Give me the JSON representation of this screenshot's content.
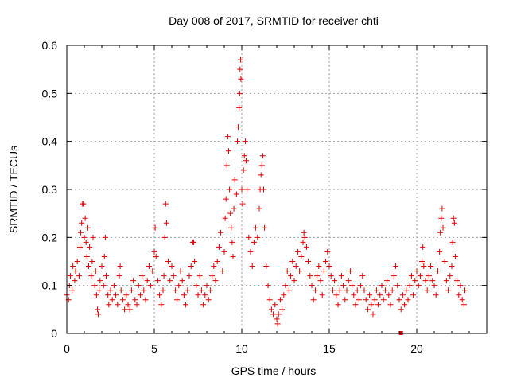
{
  "chart_data": {
    "type": "scatter",
    "title": "Day 008 of 2017, SRMTID for receiver chti",
    "xlabel": "GPS time / hours",
    "ylabel": "SRMTID / TECUs",
    "xlim": [
      0,
      24
    ],
    "ylim": [
      0,
      0.6
    ],
    "xticks": [
      0,
      5,
      10,
      15,
      20
    ],
    "xtick_labels": [
      "0",
      "5",
      "10",
      "15",
      "20"
    ],
    "yticks": [
      0,
      0.1,
      0.2,
      0.3,
      0.4,
      0.5,
      0.6
    ],
    "ytick_labels": [
      "0",
      "0.1",
      "0.2",
      "0.3",
      "0.4",
      "0.5",
      "0.6"
    ],
    "grid": true,
    "marker": "+",
    "color": "#e00000",
    "series": [
      {
        "name": "SRMTID",
        "points": [
          [
            0.0,
            0.08
          ],
          [
            0.1,
            0.07
          ],
          [
            0.15,
            0.1
          ],
          [
            0.2,
            0.12
          ],
          [
            0.3,
            0.09
          ],
          [
            0.35,
            0.14
          ],
          [
            0.45,
            0.11
          ],
          [
            0.5,
            0.13
          ],
          [
            0.6,
            0.15
          ],
          [
            0.7,
            0.12
          ],
          [
            0.75,
            0.18
          ],
          [
            0.8,
            0.21
          ],
          [
            0.85,
            0.23
          ],
          [
            0.9,
            0.27
          ],
          [
            0.95,
            0.27
          ],
          [
            1.0,
            0.2
          ],
          [
            1.05,
            0.24
          ],
          [
            1.1,
            0.19
          ],
          [
            1.15,
            0.16
          ],
          [
            1.2,
            0.22
          ],
          [
            1.25,
            0.14
          ],
          [
            1.3,
            0.18
          ],
          [
            1.4,
            0.12
          ],
          [
            1.45,
            0.15
          ],
          [
            1.5,
            0.2
          ],
          [
            1.6,
            0.1
          ],
          [
            1.65,
            0.13
          ],
          [
            1.7,
            0.08
          ],
          [
            1.75,
            0.05
          ],
          [
            1.8,
            0.04
          ],
          [
            1.85,
            0.09
          ],
          [
            1.9,
            0.11
          ],
          [
            2.0,
            0.14
          ],
          [
            2.1,
            0.1
          ],
          [
            2.15,
            0.16
          ],
          [
            2.2,
            0.2
          ],
          [
            2.25,
            0.12
          ],
          [
            2.35,
            0.08
          ],
          [
            2.4,
            0.06
          ],
          [
            2.5,
            0.09
          ],
          [
            2.6,
            0.07
          ],
          [
            2.7,
            0.1
          ],
          [
            2.8,
            0.08
          ],
          [
            2.9,
            0.06
          ],
          [
            3.0,
            0.12
          ],
          [
            3.05,
            0.14
          ],
          [
            3.1,
            0.09
          ],
          [
            3.2,
            0.07
          ],
          [
            3.3,
            0.05
          ],
          [
            3.4,
            0.08
          ],
          [
            3.5,
            0.06
          ],
          [
            3.6,
            0.05
          ],
          [
            3.7,
            0.09
          ],
          [
            3.8,
            0.11
          ],
          [
            3.9,
            0.07
          ],
          [
            4.0,
            0.06
          ],
          [
            4.1,
            0.1
          ],
          [
            4.2,
            0.08
          ],
          [
            4.3,
            0.12
          ],
          [
            4.4,
            0.09
          ],
          [
            4.5,
            0.07
          ],
          [
            4.6,
            0.11
          ],
          [
            4.7,
            0.14
          ],
          [
            4.8,
            0.1
          ],
          [
            4.9,
            0.13
          ],
          [
            5.0,
            0.17
          ],
          [
            5.05,
            0.22
          ],
          [
            5.1,
            0.16
          ],
          [
            5.2,
            0.11
          ],
          [
            5.3,
            0.08
          ],
          [
            5.4,
            0.06
          ],
          [
            5.5,
            0.09
          ],
          [
            5.55,
            0.12
          ],
          [
            5.6,
            0.2
          ],
          [
            5.65,
            0.27
          ],
          [
            5.7,
            0.23
          ],
          [
            5.8,
            0.15
          ],
          [
            5.9,
            0.11
          ],
          [
            6.0,
            0.14
          ],
          [
            6.1,
            0.12
          ],
          [
            6.2,
            0.09
          ],
          [
            6.3,
            0.07
          ],
          [
            6.4,
            0.1
          ],
          [
            6.5,
            0.13
          ],
          [
            6.6,
            0.11
          ],
          [
            6.7,
            0.08
          ],
          [
            6.8,
            0.06
          ],
          [
            6.9,
            0.09
          ],
          [
            7.0,
            0.12
          ],
          [
            7.1,
            0.14
          ],
          [
            7.2,
            0.19
          ],
          [
            7.25,
            0.19
          ],
          [
            7.3,
            0.15
          ],
          [
            7.4,
            0.1
          ],
          [
            7.5,
            0.08
          ],
          [
            7.6,
            0.12
          ],
          [
            7.7,
            0.09
          ],
          [
            7.8,
            0.06
          ],
          [
            7.9,
            0.08
          ],
          [
            8.0,
            0.1
          ],
          [
            8.1,
            0.07
          ],
          [
            8.2,
            0.09
          ],
          [
            8.3,
            0.12
          ],
          [
            8.4,
            0.14
          ],
          [
            8.5,
            0.11
          ],
          [
            8.6,
            0.15
          ],
          [
            8.7,
            0.18
          ],
          [
            8.8,
            0.21
          ],
          [
            8.9,
            0.13
          ],
          [
            9.0,
            0.17
          ],
          [
            9.05,
            0.24
          ],
          [
            9.1,
            0.28
          ],
          [
            9.15,
            0.35
          ],
          [
            9.2,
            0.41
          ],
          [
            9.25,
            0.38
          ],
          [
            9.3,
            0.3
          ],
          [
            9.35,
            0.25
          ],
          [
            9.4,
            0.22
          ],
          [
            9.45,
            0.19
          ],
          [
            9.5,
            0.16
          ],
          [
            9.55,
            0.26
          ],
          [
            9.6,
            0.32
          ],
          [
            9.7,
            0.29
          ],
          [
            9.75,
            0.4
          ],
          [
            9.8,
            0.43
          ],
          [
            9.85,
            0.47
          ],
          [
            9.88,
            0.5
          ],
          [
            9.9,
            0.55
          ],
          [
            9.93,
            0.57
          ],
          [
            9.95,
            0.53
          ],
          [
            10.0,
            0.3
          ],
          [
            10.05,
            0.27
          ],
          [
            10.1,
            0.34
          ],
          [
            10.15,
            0.37
          ],
          [
            10.2,
            0.4
          ],
          [
            10.25,
            0.36
          ],
          [
            10.3,
            0.3
          ],
          [
            10.4,
            0.2
          ],
          [
            10.5,
            0.17
          ],
          [
            10.6,
            0.14
          ],
          [
            10.7,
            0.19
          ],
          [
            10.8,
            0.22
          ],
          [
            10.9,
            0.2
          ],
          [
            11.0,
            0.26
          ],
          [
            11.05,
            0.3
          ],
          [
            11.1,
            0.33
          ],
          [
            11.15,
            0.35
          ],
          [
            11.2,
            0.37
          ],
          [
            11.25,
            0.3
          ],
          [
            11.3,
            0.22
          ],
          [
            11.4,
            0.14
          ],
          [
            11.5,
            0.1
          ],
          [
            11.6,
            0.07
          ],
          [
            11.7,
            0.05
          ],
          [
            11.8,
            0.04
          ],
          [
            11.9,
            0.06
          ],
          [
            12.0,
            0.03
          ],
          [
            12.05,
            0.02
          ],
          [
            12.1,
            0.04
          ],
          [
            12.2,
            0.07
          ],
          [
            12.3,
            0.05
          ],
          [
            12.4,
            0.08
          ],
          [
            12.5,
            0.1
          ],
          [
            12.6,
            0.13
          ],
          [
            12.7,
            0.09
          ],
          [
            12.8,
            0.12
          ],
          [
            12.9,
            0.15
          ],
          [
            13.0,
            0.11
          ],
          [
            13.1,
            0.14
          ],
          [
            13.2,
            0.17
          ],
          [
            13.3,
            0.13
          ],
          [
            13.4,
            0.16
          ],
          [
            13.5,
            0.19
          ],
          [
            13.55,
            0.21
          ],
          [
            13.6,
            0.2
          ],
          [
            13.7,
            0.18
          ],
          [
            13.8,
            0.15
          ],
          [
            13.9,
            0.12
          ],
          [
            14.0,
            0.1
          ],
          [
            14.1,
            0.07
          ],
          [
            14.2,
            0.09
          ],
          [
            14.3,
            0.12
          ],
          [
            14.4,
            0.14
          ],
          [
            14.5,
            0.11
          ],
          [
            14.6,
            0.08
          ],
          [
            14.7,
            0.13
          ],
          [
            14.8,
            0.15
          ],
          [
            14.9,
            0.17
          ],
          [
            15.0,
            0.14
          ],
          [
            15.1,
            0.12
          ],
          [
            15.2,
            0.09
          ],
          [
            15.3,
            0.11
          ],
          [
            15.4,
            0.08
          ],
          [
            15.5,
            0.06
          ],
          [
            15.6,
            0.09
          ],
          [
            15.7,
            0.12
          ],
          [
            15.8,
            0.1
          ],
          [
            15.9,
            0.07
          ],
          [
            16.0,
            0.09
          ],
          [
            16.1,
            0.11
          ],
          [
            16.2,
            0.13
          ],
          [
            16.3,
            0.1
          ],
          [
            16.4,
            0.08
          ],
          [
            16.5,
            0.06
          ],
          [
            16.6,
            0.09
          ],
          [
            16.7,
            0.07
          ],
          [
            16.8,
            0.1
          ],
          [
            16.9,
            0.12
          ],
          [
            17.0,
            0.09
          ],
          [
            17.1,
            0.07
          ],
          [
            17.2,
            0.05
          ],
          [
            17.3,
            0.08
          ],
          [
            17.4,
            0.06
          ],
          [
            17.5,
            0.04
          ],
          [
            17.6,
            0.07
          ],
          [
            17.7,
            0.09
          ],
          [
            17.8,
            0.06
          ],
          [
            17.9,
            0.08
          ],
          [
            18.0,
            0.1
          ],
          [
            18.1,
            0.07
          ],
          [
            18.2,
            0.09
          ],
          [
            18.3,
            0.11
          ],
          [
            18.4,
            0.08
          ],
          [
            18.5,
            0.06
          ],
          [
            18.6,
            0.09
          ],
          [
            18.7,
            0.12
          ],
          [
            18.8,
            0.14
          ],
          [
            18.9,
            0.1
          ],
          [
            19.0,
            0.07
          ],
          [
            19.1,
            0.05
          ],
          [
            19.2,
            0.08
          ],
          [
            19.3,
            0.06
          ],
          [
            19.4,
            0.09
          ],
          [
            19.5,
            0.07
          ],
          [
            19.6,
            0.1
          ],
          [
            19.7,
            0.12
          ],
          [
            19.8,
            0.08
          ],
          [
            19.9,
            0.11
          ],
          [
            20.0,
            0.13
          ],
          [
            20.1,
            0.1
          ],
          [
            20.2,
            0.12
          ],
          [
            20.3,
            0.15
          ],
          [
            20.35,
            0.18
          ],
          [
            20.4,
            0.14
          ],
          [
            20.5,
            0.11
          ],
          [
            20.6,
            0.09
          ],
          [
            20.7,
            0.12
          ],
          [
            20.8,
            0.14
          ],
          [
            20.9,
            0.11
          ],
          [
            21.0,
            0.1
          ],
          [
            21.1,
            0.08
          ],
          [
            21.2,
            0.13
          ],
          [
            21.3,
            0.17
          ],
          [
            21.35,
            0.21
          ],
          [
            21.4,
            0.24
          ],
          [
            21.45,
            0.26
          ],
          [
            21.5,
            0.22
          ],
          [
            21.6,
            0.15
          ],
          [
            21.7,
            0.11
          ],
          [
            21.8,
            0.09
          ],
          [
            21.9,
            0.12
          ],
          [
            22.0,
            0.14
          ],
          [
            22.05,
            0.19
          ],
          [
            22.1,
            0.24
          ],
          [
            22.15,
            0.23
          ],
          [
            22.2,
            0.16
          ],
          [
            22.3,
            0.11
          ],
          [
            22.4,
            0.08
          ],
          [
            22.5,
            0.1
          ],
          [
            22.6,
            0.07
          ],
          [
            22.7,
            0.06
          ],
          [
            22.75,
            0.09
          ]
        ],
        "square_marker_points": [
          [
            19.1,
            0.0
          ]
        ]
      }
    ]
  }
}
